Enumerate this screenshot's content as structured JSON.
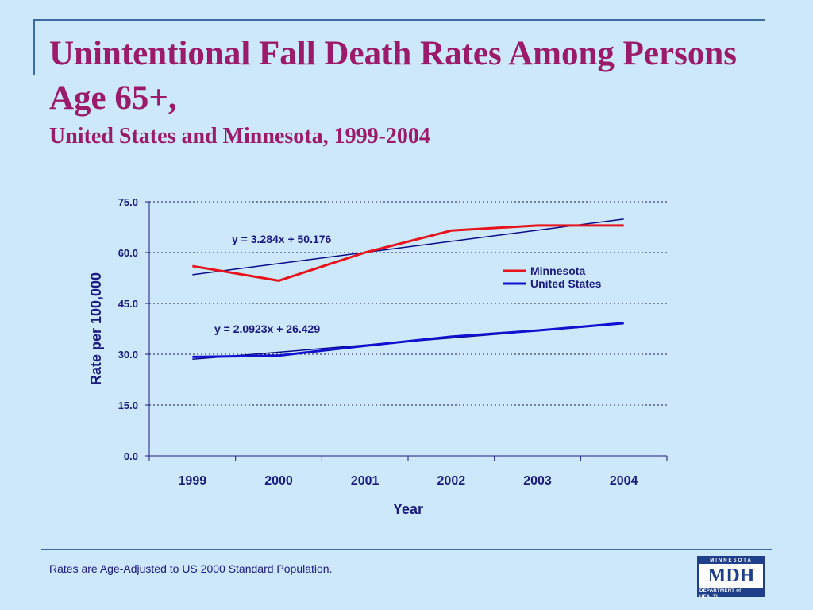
{
  "slide": {
    "title": "Unintentional Fall Death Rates Among Persons Age 65+,",
    "subtitle": "United States and Minnesota, 1999-2004",
    "footnote": "Rates are Age-Adjusted to US 2000 Standard Population."
  },
  "logo": {
    "top": "MINNESOTA",
    "main": "MDH",
    "bottom": "DEPARTMENT of HEALTH"
  },
  "chart_data": {
    "type": "line",
    "categories": [
      "1999",
      "2000",
      "2001",
      "2002",
      "2003",
      "2004"
    ],
    "xlabel": "Year",
    "ylabel": "Rate per 100,000",
    "ylim": [
      0,
      75
    ],
    "yticks": [
      "0.0",
      "15.0",
      "30.0",
      "45.0",
      "60.0",
      "75.0"
    ],
    "grid": "horizontal dotted",
    "legend_position": "right",
    "series": [
      {
        "name": "Minnesota",
        "color": "#e8141c",
        "values": [
          56.0,
          51.7,
          60.0,
          66.5,
          68.0,
          68.0
        ]
      },
      {
        "name": "United States",
        "color": "#1010d0",
        "values": [
          29.2,
          29.6,
          32.5,
          35.2,
          37.0,
          39.2
        ]
      }
    ],
    "trendlines": [
      {
        "label": "y = 3.284x + 50.176",
        "slope": 3.284,
        "intercept": 50.176,
        "color": "#0a0a8a"
      },
      {
        "label": "y = 2.0923x + 26.429",
        "slope": 2.0923,
        "intercept": 26.429,
        "color": "#0a0a8a"
      }
    ]
  }
}
